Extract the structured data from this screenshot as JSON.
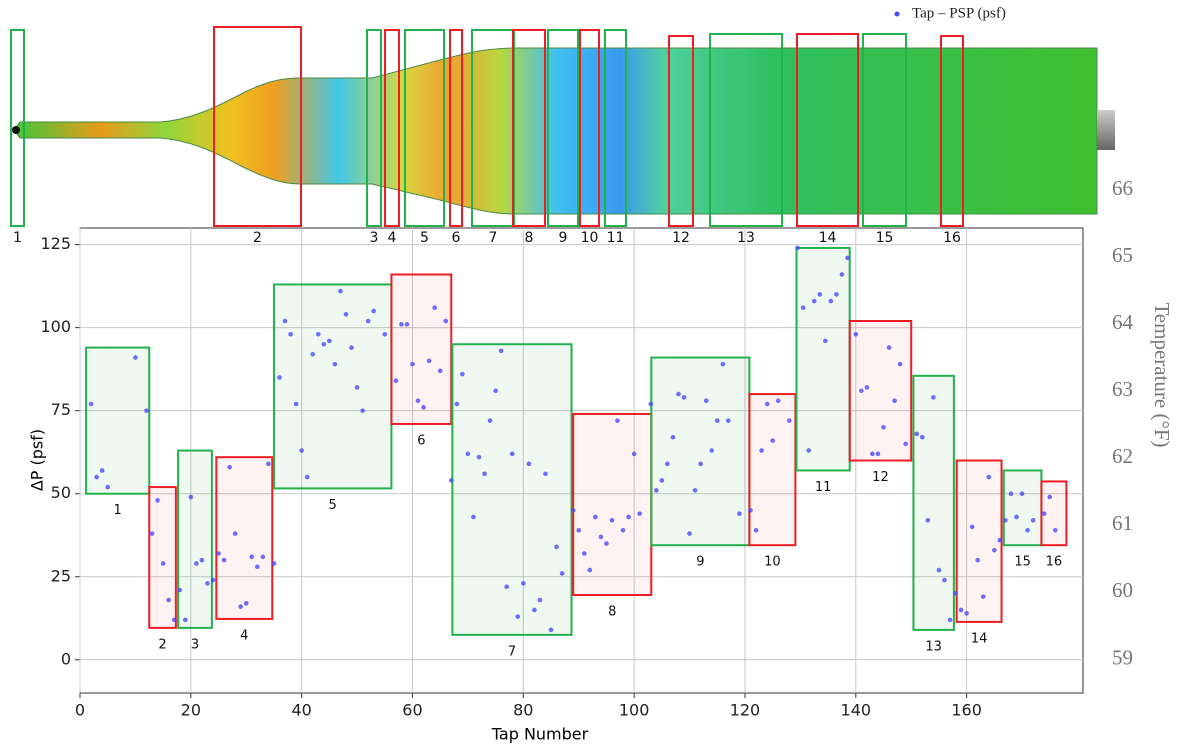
{
  "chart_data": {
    "type": "scatter",
    "xlabel": "Tap Number",
    "ylabel": "ΔP (psf)",
    "y2label": "Temperature (°F)",
    "xlim": [
      0,
      181
    ],
    "ylim": [
      -10,
      130
    ],
    "y2lim": [
      58.5,
      66.3
    ],
    "xticks": [
      0,
      20,
      40,
      60,
      80,
      100,
      120,
      140,
      160
    ],
    "yticks": [
      0,
      25,
      50,
      75,
      100,
      125
    ],
    "y2ticks": [
      59,
      60,
      61,
      62,
      63,
      64,
      65,
      66
    ],
    "grid": true,
    "legend": "upper right",
    "series": [
      {
        "name": "Tap – PSP (psf)",
        "color": "#4a4aff",
        "x": [
          2,
          3,
          4,
          5,
          10,
          12,
          13,
          14,
          15,
          16,
          17,
          18,
          19,
          20,
          21,
          22,
          23,
          24,
          25,
          26,
          27,
          28,
          29,
          30,
          31,
          32,
          33,
          34,
          35,
          36,
          37,
          38,
          39,
          40,
          41,
          42,
          43,
          44,
          45,
          46,
          47,
          48,
          49,
          50,
          51,
          52,
          53,
          55,
          57,
          58,
          59,
          60,
          61,
          62,
          63,
          64,
          65,
          66,
          67,
          68,
          69,
          70,
          71,
          72,
          73,
          74,
          75,
          76,
          77,
          78,
          79,
          80,
          81,
          82,
          83,
          84,
          85,
          86,
          87,
          89,
          90,
          91,
          92,
          93,
          94,
          95,
          96,
          97,
          98,
          99,
          100,
          101,
          103,
          104,
          105,
          106,
          107,
          108,
          109,
          110,
          111,
          112,
          113,
          114,
          115,
          116,
          117,
          119,
          121,
          122,
          123,
          124,
          125,
          126,
          128,
          129.5,
          130.5,
          131.5,
          132.5,
          133.5,
          134.5,
          135.5,
          136.5,
          137.5,
          138.5,
          140,
          141,
          142,
          143,
          144,
          145,
          146,
          147,
          148,
          149,
          151,
          152,
          153,
          154,
          155,
          156,
          157,
          158,
          159,
          160,
          161,
          162,
          163,
          164,
          165,
          166,
          167,
          168,
          169,
          170,
          171,
          172,
          174,
          175,
          176
        ],
        "values": [
          77,
          55,
          57,
          52,
          91,
          75,
          38,
          48,
          29,
          18,
          12,
          21,
          12,
          49,
          29,
          30,
          23,
          24,
          32,
          30,
          58,
          38,
          16,
          17,
          31,
          28,
          31,
          59,
          29,
          85,
          102,
          98,
          77,
          63,
          55,
          92,
          98,
          95,
          96,
          89,
          111,
          104,
          94,
          82,
          75,
          102,
          105,
          98,
          84,
          101,
          101,
          89,
          78,
          76,
          90,
          106,
          87,
          102,
          54,
          77,
          86,
          62,
          43,
          61,
          56,
          72,
          81,
          93,
          22,
          62,
          13,
          23,
          59,
          15,
          18,
          56,
          9,
          34,
          26,
          45,
          39,
          32,
          27,
          43,
          37,
          35,
          42,
          72,
          39,
          43,
          62,
          44,
          77,
          51,
          54,
          59,
          67,
          80,
          79,
          38,
          51,
          59,
          78,
          63,
          72,
          89,
          72,
          44,
          45,
          39,
          63,
          77,
          66,
          78,
          72,
          124,
          106,
          63,
          108,
          110,
          96,
          108,
          110,
          116,
          121,
          98,
          81,
          82,
          62,
          62,
          70,
          94,
          78,
          89,
          65,
          68,
          67,
          42,
          79,
          27,
          24,
          12,
          20,
          15,
          14,
          40,
          30,
          19,
          55,
          33,
          36,
          42,
          50,
          43,
          50,
          39,
          42,
          44,
          49,
          39
        ]
      }
    ],
    "regions": [
      {
        "label": "1",
        "x": [
          1.1,
          12.5
        ],
        "y": [
          50,
          94
        ],
        "color": "#22b14c"
      },
      {
        "label": "2",
        "x": [
          12.5,
          17.3
        ],
        "y": [
          9.6,
          52
        ],
        "color": "#ee1c24"
      },
      {
        "label": "3",
        "x": [
          17.7,
          23.8
        ],
        "y": [
          9.6,
          63
        ],
        "color": "#22b14c"
      },
      {
        "label": "4",
        "x": [
          24.6,
          34.7
        ],
        "y": [
          12.3,
          61
        ],
        "color": "#ee1c24"
      },
      {
        "label": "5",
        "x": [
          35,
          56.2
        ],
        "y": [
          51.6,
          113
        ],
        "color": "#22b14c"
      },
      {
        "label": "6",
        "x": [
          56.2,
          67
        ],
        "y": [
          71,
          116
        ],
        "color": "#ee1c24"
      },
      {
        "label": "7",
        "x": [
          67.2,
          88.7
        ],
        "y": [
          7.5,
          95
        ],
        "color": "#22b14c"
      },
      {
        "label": "8",
        "x": [
          89,
          103.1
        ],
        "y": [
          19.5,
          74
        ],
        "color": "#ee1c24"
      },
      {
        "label": "9",
        "x": [
          103.1,
          120.8
        ],
        "y": [
          34.5,
          91
        ],
        "color": "#22b14c"
      },
      {
        "label": "10",
        "x": [
          120.8,
          129.1
        ],
        "y": [
          34.5,
          80
        ],
        "color": "#ee1c24"
      },
      {
        "label": "11",
        "x": [
          129.3,
          138.9
        ],
        "y": [
          57,
          124
        ],
        "color": "#22b14c"
      },
      {
        "label": "12",
        "x": [
          138.9,
          150
        ],
        "y": [
          60,
          102
        ],
        "color": "#ee1c24"
      },
      {
        "label": "13",
        "x": [
          150.4,
          157.7
        ],
        "y": [
          9,
          85.5
        ],
        "color": "#22b14c"
      },
      {
        "label": "14",
        "x": [
          158.2,
          166.3
        ],
        "y": [
          11.4,
          60
        ],
        "color": "#ee1c24"
      },
      {
        "label": "15",
        "x": [
          166.7,
          173.5
        ],
        "y": [
          34.5,
          57
        ],
        "color": "#22b14c"
      },
      {
        "label": "16",
        "x": [
          173.5,
          178
        ],
        "y": [
          34.5,
          53.7
        ],
        "color": "#ee1c24"
      }
    ]
  }
}
